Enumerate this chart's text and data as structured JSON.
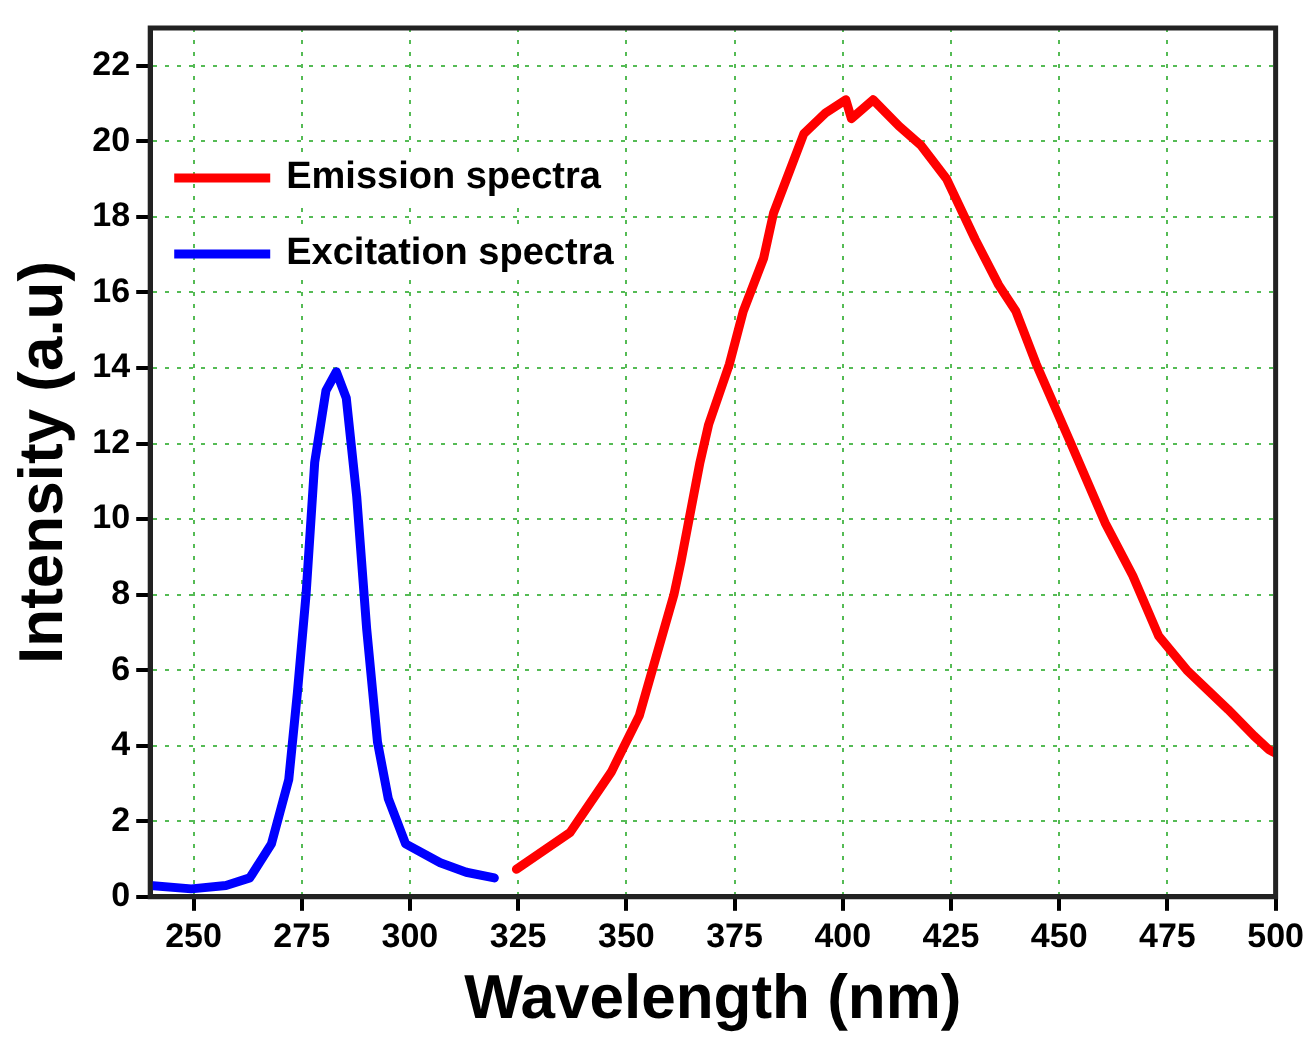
{
  "chart_data": {
    "type": "line",
    "xlabel": "Wavelength (nm)",
    "ylabel": "Intensity (a.u)",
    "xlim": [
      240,
      500
    ],
    "xticks": [
      250,
      275,
      300,
      325,
      350,
      375,
      400,
      425,
      450,
      475,
      500
    ],
    "ylim": [
      0,
      23
    ],
    "yticks": [
      0,
      2,
      4,
      6,
      8,
      10,
      12,
      14,
      16,
      18,
      20,
      22
    ],
    "grid": true,
    "legend": "top left",
    "marker": "none",
    "line_style": "solid",
    "series": [
      {
        "name": "Emission spectra",
        "color": "#ff0000",
        "x": [
          324.6,
          337,
          346.5,
          353,
          354.5,
          361,
          362.6,
          367,
          369,
          373.8,
          377,
          381.7,
          384,
          387,
          391,
          396,
          400.7,
          402,
          407,
          413,
          418,
          424,
          430.6,
          436,
          440,
          444.7,
          452.7,
          460.6,
          467,
          473,
          479.5,
          489,
          495,
          498.4,
          500
        ],
        "values": [
          0.73,
          1.7,
          3.3,
          4.8,
          5.4,
          8.0,
          8.86,
          11.5,
          12.5,
          14.1,
          15.5,
          16.9,
          18.1,
          19.0,
          20.2,
          20.75,
          21.1,
          20.6,
          21.1,
          20.4,
          19.9,
          19.0,
          17.4,
          16.2,
          15.5,
          14.1,
          12.0,
          9.9,
          8.5,
          6.9,
          6.0,
          4.96,
          4.26,
          3.9,
          3.8
        ]
      },
      {
        "name": "Excitation spectra",
        "color": "#0000ff",
        "x": [
          240,
          249.5,
          257.5,
          263,
          268,
          272,
          274,
          276,
          278,
          280.6,
          283,
          285.3,
          287.7,
          290,
          292.5,
          295,
          299,
          307,
          313,
          319.5
        ],
        "values": [
          0.3,
          0.21,
          0.3,
          0.5,
          1.4,
          3.1,
          5.4,
          8.0,
          11.5,
          13.4,
          13.9,
          13.2,
          10.6,
          7.1,
          4.1,
          2.6,
          1.4,
          0.9,
          0.65,
          0.5
        ]
      }
    ]
  }
}
